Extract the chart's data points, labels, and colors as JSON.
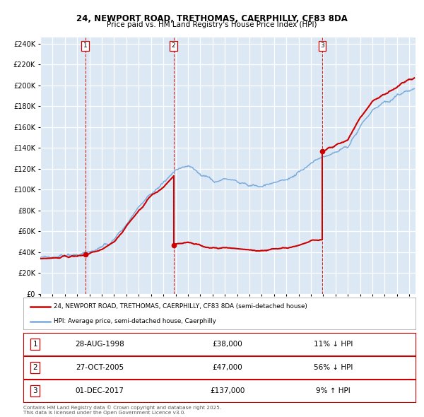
{
  "title1": "24, NEWPORT ROAD, TRETHOMAS, CAERPHILLY, CF83 8DA",
  "title2": "Price paid vs. HM Land Registry's House Price Index (HPI)",
  "legend_line1": "24, NEWPORT ROAD, TRETHOMAS, CAERPHILLY, CF83 8DA (semi-detached house)",
  "legend_line2": "HPI: Average price, semi-detached house, Caerphilly",
  "purchase_color": "#cc0000",
  "hpi_color": "#7aabdc",
  "bg_color": "#dce9f5",
  "ylabel_vals": [
    0,
    20000,
    40000,
    60000,
    80000,
    100000,
    120000,
    140000,
    160000,
    180000,
    200000,
    220000,
    240000
  ],
  "xmin": 1995.0,
  "xmax": 2025.5,
  "purchases": [
    {
      "date": 1998.66,
      "price": 38000,
      "label": "1"
    },
    {
      "date": 2005.83,
      "price": 47000,
      "label": "2"
    },
    {
      "date": 2017.92,
      "price": 137000,
      "label": "3"
    }
  ],
  "vline_dates": [
    1998.66,
    2005.83,
    2017.92
  ],
  "hpi_key_years": [
    1995,
    1996,
    1997,
    1998,
    1999,
    2000,
    2001,
    2002,
    2003,
    2004,
    2005,
    2006,
    2007,
    2008,
    2009,
    2010,
    2011,
    2012,
    2013,
    2014,
    2015,
    2016,
    2017,
    2018,
    2019,
    2020,
    2021,
    2022,
    2023,
    2024,
    2025.5
  ],
  "hpi_key_vals": [
    35000,
    35500,
    36500,
    38000,
    40000,
    44000,
    52000,
    67000,
    83000,
    97000,
    106000,
    119000,
    123000,
    116000,
    109000,
    111000,
    108000,
    104000,
    104000,
    107000,
    109000,
    116000,
    126000,
    131000,
    136000,
    141000,
    161000,
    176000,
    183000,
    190000,
    198000
  ],
  "table_rows": [
    {
      "num": "1",
      "date": "28-AUG-1998",
      "price": "£38,000",
      "change": "11% ↓ HPI"
    },
    {
      "num": "2",
      "date": "27-OCT-2005",
      "price": "£47,000",
      "change": "56% ↓ HPI"
    },
    {
      "num": "3",
      "date": "01-DEC-2017",
      "price": "£137,000",
      "change": "9% ↑ HPI"
    }
  ],
  "footer": "Contains HM Land Registry data © Crown copyright and database right 2025.\nThis data is licensed under the Open Government Licence v3.0."
}
